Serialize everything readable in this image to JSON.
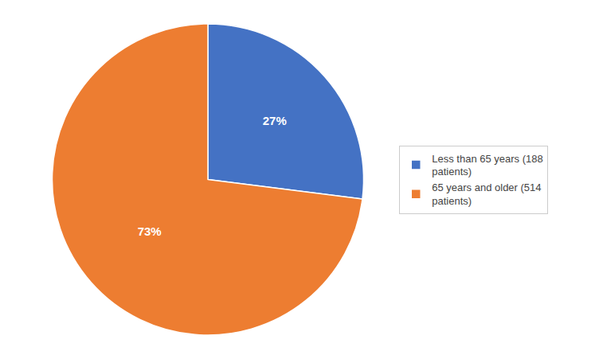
{
  "chart_data": {
    "type": "pie",
    "categories": [
      "Less than 65 years (188\npatients)",
      "65 years and older (514\npatients)"
    ],
    "values": [
      27,
      73
    ],
    "value_labels": [
      "27%",
      "73%"
    ],
    "colors": [
      "#4472C4",
      "#ED7D31"
    ],
    "data_labels": true,
    "legend": "right"
  }
}
